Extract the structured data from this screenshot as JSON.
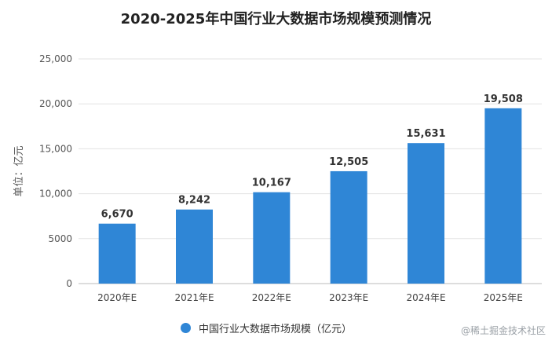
{
  "chart_data": {
    "type": "bar",
    "title": "2020-2025年中国行业大数据市场规模预测情况",
    "ylabel": "单位：亿元",
    "xlabel": "",
    "categories": [
      "2020年E",
      "2021年E",
      "2022年E",
      "2023年E",
      "2024年E",
      "2025年E"
    ],
    "series": [
      {
        "name": "中国行业大数据市场规模（亿元）",
        "values": [
          6670,
          8242,
          10167,
          12505,
          15631,
          19508
        ]
      }
    ],
    "data_labels": [
      "6,670",
      "8,242",
      "10,167",
      "12,505",
      "15,631",
      "19,508"
    ],
    "yticks": [
      0,
      5000,
      10000,
      15000,
      20000,
      25000
    ],
    "ytick_labels": [
      "0",
      "5000",
      "10,000",
      "15,000",
      "20,000",
      "25,000"
    ],
    "ylim": [
      0,
      25000
    ],
    "grid": true,
    "legend_position": "bottom",
    "bar_color": "#2f86d6"
  },
  "watermark_text": "@稀土掘金技术社区"
}
